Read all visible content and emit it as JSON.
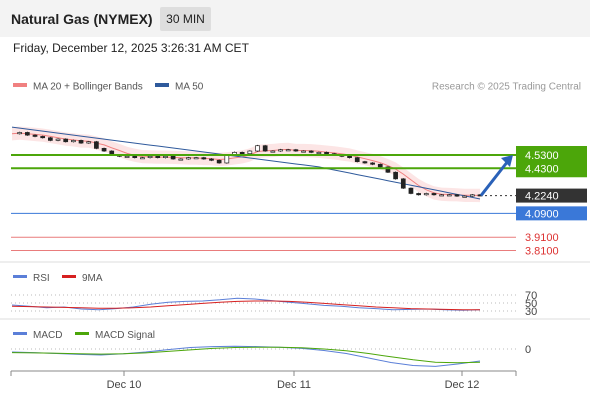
{
  "header": {
    "title": "Natural Gas (NYMEX)",
    "timeframe": "30 MIN",
    "datetime": "Friday, December 12, 2025 3:26:31 AM CET"
  },
  "legend": {
    "ma20_bb": "MA 20 + Bollinger Bands",
    "ma50": "MA 50",
    "credit": "Research © 2025 Trading Central",
    "rsi": "RSI",
    "rsi_ma": "9MA",
    "macd": "MACD",
    "macd_signal": "MACD Signal"
  },
  "colors": {
    "ma20": "#f08080",
    "ma50": "#2f5a9c",
    "resistance": "#4ca60a",
    "pivot": "#3a78d8",
    "support": "#e97c7c",
    "current": "#333333",
    "bollinger_fill": "#fbe0e0",
    "arrow": "#2a61b8"
  },
  "chart_data": [
    {
      "type": "candlestick",
      "x_ticks": [
        "Dec 10",
        "Dec 11",
        "Dec 12"
      ],
      "ylim": [
        3.75,
        4.62
      ],
      "series": [
        {
          "name": "MA 20 + Bollinger Bands",
          "kind": "ma"
        },
        {
          "name": "MA 50",
          "kind": "ma"
        }
      ],
      "close_path": [
        4.69,
        4.7,
        4.68,
        4.67,
        4.66,
        4.64,
        4.65,
        4.63,
        4.64,
        4.62,
        4.63,
        4.58,
        4.56,
        4.53,
        4.52,
        4.52,
        4.51,
        4.51,
        4.52,
        4.51,
        4.52,
        4.5,
        4.5,
        4.51,
        4.51,
        4.5,
        4.49,
        4.47,
        4.53,
        4.55,
        4.54,
        4.56,
        4.6,
        4.56,
        4.56,
        4.57,
        4.57,
        4.56,
        4.56,
        4.55,
        4.55,
        4.54,
        4.53,
        4.52,
        4.51,
        4.48,
        4.47,
        4.46,
        4.44,
        4.4,
        4.35,
        4.28,
        4.24,
        4.23,
        4.24,
        4.23,
        4.23,
        4.23,
        4.22,
        4.22,
        4.23,
        4.224
      ],
      "levels": [
        {
          "label": "4.5300",
          "value": 4.53,
          "kind": "resistance"
        },
        {
          "label": "4.4300",
          "value": 4.43,
          "kind": "resistance"
        },
        {
          "label": "4.2240",
          "value": 4.224,
          "kind": "current"
        },
        {
          "label": "4.0900",
          "value": 4.09,
          "kind": "pivot"
        },
        {
          "label": "3.9100",
          "value": 3.91,
          "kind": "support"
        },
        {
          "label": "3.8100",
          "value": 3.81,
          "kind": "support"
        }
      ],
      "projection": {
        "from": 4.224,
        "to": 4.53,
        "direction": "up"
      }
    },
    {
      "type": "line",
      "name": "RSI",
      "ylim": [
        20,
        80
      ],
      "y_ticks": [
        {
          "label": "70",
          "value": 70
        },
        {
          "label": "50",
          "value": 50
        },
        {
          "label": "30",
          "value": 30
        }
      ],
      "series": [
        {
          "name": "RSI",
          "values": [
            45,
            42,
            38,
            40,
            35,
            33,
            36,
            40,
            47,
            52,
            54,
            55,
            58,
            62,
            60,
            56,
            52,
            48,
            44,
            42,
            38,
            36,
            33,
            34,
            35,
            33,
            32,
            33
          ]
        },
        {
          "name": "9MA",
          "values": [
            42,
            41,
            40,
            39,
            38,
            37,
            37,
            38,
            40,
            43,
            46,
            49,
            52,
            54,
            55,
            55,
            54,
            52,
            49,
            46,
            43,
            40,
            38,
            36,
            35,
            34,
            33,
            33
          ]
        }
      ]
    },
    {
      "type": "line",
      "name": "MACD",
      "y_ticks": [
        {
          "label": "0",
          "value": 0
        }
      ],
      "ylim": [
        -0.08,
        0.06
      ],
      "series": [
        {
          "name": "MACD",
          "values": [
            -0.01,
            -0.012,
            -0.015,
            -0.018,
            -0.02,
            -0.016,
            -0.01,
            -0.002,
            0.005,
            0.008,
            0.009,
            0.008,
            0.006,
            0.002,
            -0.005,
            -0.015,
            -0.03,
            -0.045,
            -0.055,
            -0.058,
            -0.05,
            -0.04
          ]
        },
        {
          "name": "MACD Signal",
          "values": [
            -0.012,
            -0.013,
            -0.014,
            -0.016,
            -0.017,
            -0.016,
            -0.013,
            -0.008,
            -0.003,
            0.002,
            0.005,
            0.006,
            0.006,
            0.004,
            0.0,
            -0.006,
            -0.015,
            -0.026,
            -0.036,
            -0.044,
            -0.046,
            -0.044
          ]
        }
      ]
    }
  ]
}
